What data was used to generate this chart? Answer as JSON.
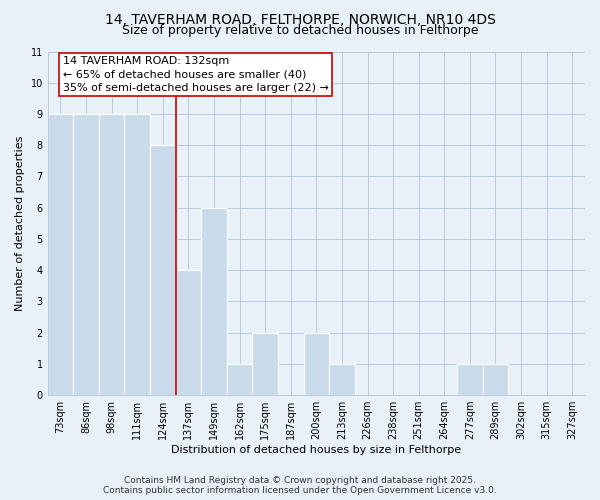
{
  "title_line1": "14, TAVERHAM ROAD, FELTHORPE, NORWICH, NR10 4DS",
  "title_line2": "Size of property relative to detached houses in Felthorpe",
  "xlabel": "Distribution of detached houses by size in Felthorpe",
  "ylabel": "Number of detached properties",
  "categories": [
    "73sqm",
    "86sqm",
    "98sqm",
    "111sqm",
    "124sqm",
    "137sqm",
    "149sqm",
    "162sqm",
    "175sqm",
    "187sqm",
    "200sqm",
    "213sqm",
    "226sqm",
    "238sqm",
    "251sqm",
    "264sqm",
    "277sqm",
    "289sqm",
    "302sqm",
    "315sqm",
    "327sqm"
  ],
  "values": [
    9,
    9,
    9,
    9,
    8,
    4,
    6,
    1,
    2,
    0,
    2,
    1,
    0,
    0,
    0,
    0,
    1,
    1,
    0,
    0,
    0
  ],
  "bar_color": "#c9daea",
  "bar_edge_color": "#ffffff",
  "grid_color": "#b0c4d8",
  "background_color": "#e8f0f8",
  "vline_x": 4.5,
  "vline_color": "#cc0000",
  "annotation_text": "14 TAVERHAM ROAD: 132sqm\n← 65% of detached houses are smaller (40)\n35% of semi-detached houses are larger (22) →",
  "ylim": [
    0,
    11
  ],
  "yticks": [
    0,
    1,
    2,
    3,
    4,
    5,
    6,
    7,
    8,
    9,
    10,
    11
  ],
  "footer_line1": "Contains HM Land Registry data © Crown copyright and database right 2025.",
  "footer_line2": "Contains public sector information licensed under the Open Government Licence v3.0.",
  "title_fontsize": 10,
  "subtitle_fontsize": 9,
  "axis_label_fontsize": 8,
  "tick_fontsize": 7,
  "annotation_fontsize": 8,
  "footer_fontsize": 6.5
}
